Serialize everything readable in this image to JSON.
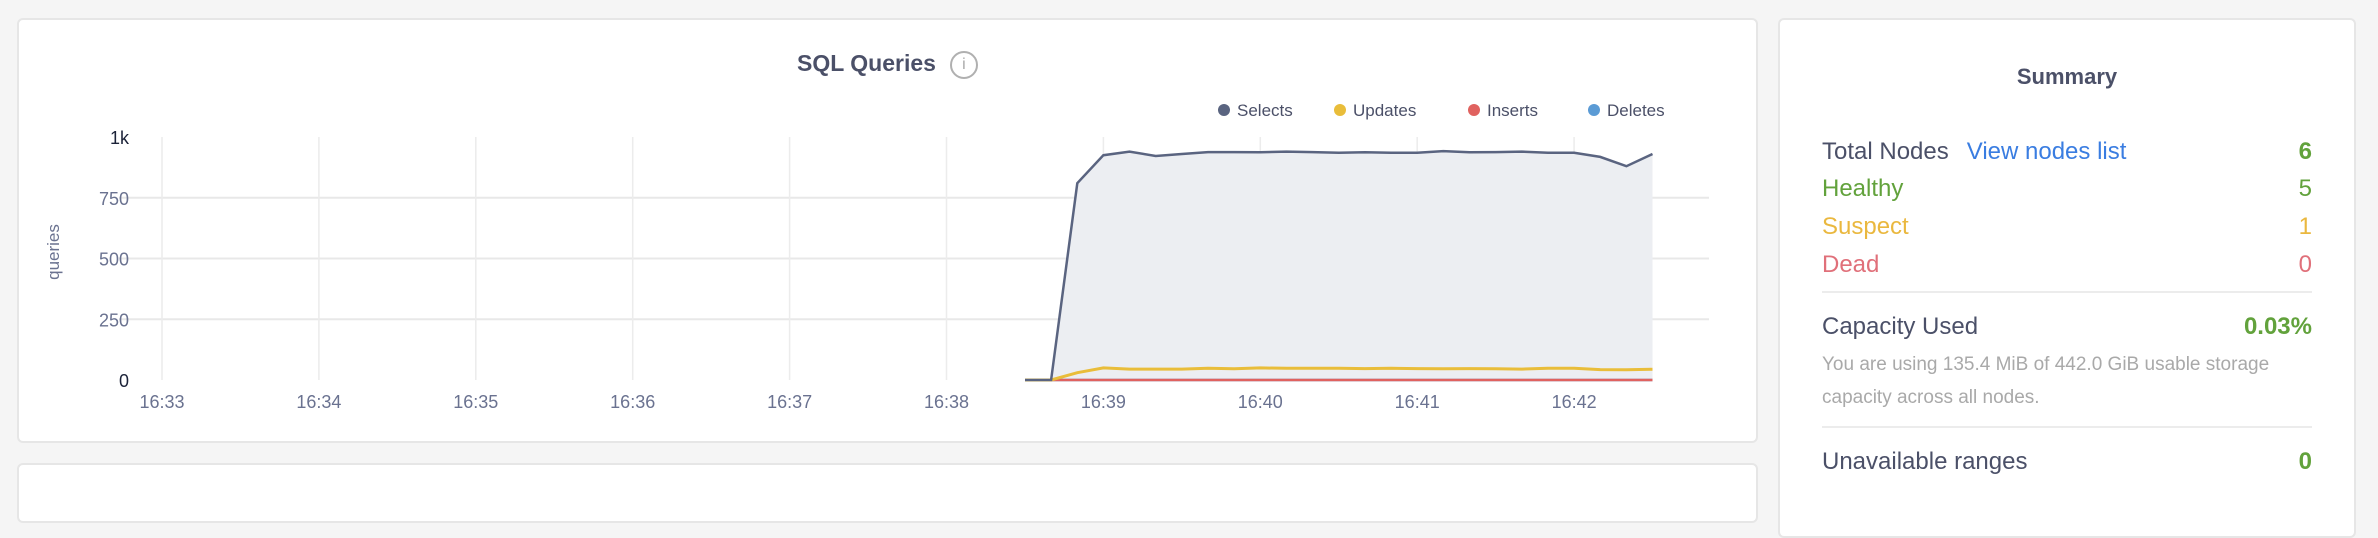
{
  "chart_data": {
    "type": "area",
    "title": "SQL Queries",
    "info_icon": "info-circle-icon",
    "ylabel": "queries",
    "xlabel": "",
    "ylim": [
      0,
      1000
    ],
    "yticks": [
      "0",
      "250",
      "500",
      "750",
      "1k"
    ],
    "ytick_values": [
      0,
      250,
      500,
      750,
      1000
    ],
    "xticks": [
      "16:33",
      "16:34",
      "16:35",
      "16:36",
      "16:37",
      "16:38",
      "16:39",
      "16:40",
      "16:41",
      "16:42"
    ],
    "xlim": [
      "16:33:00",
      "16:42:30"
    ],
    "grid": true,
    "legend_position": "top-right",
    "x": [
      "16:38:30",
      "16:38:40",
      "16:38:50",
      "16:39:00",
      "16:39:10",
      "16:39:20",
      "16:39:30",
      "16:39:40",
      "16:39:50",
      "16:40:00",
      "16:40:10",
      "16:40:20",
      "16:40:30",
      "16:40:40",
      "16:40:50",
      "16:41:00",
      "16:41:10",
      "16:41:20",
      "16:41:30",
      "16:41:40",
      "16:41:50",
      "16:42:00",
      "16:42:10",
      "16:42:20",
      "16:42:30"
    ],
    "series": [
      {
        "name": "Selects",
        "color": "#5a6480",
        "fill": "#eceef2",
        "values": [
          0,
          0,
          810,
          925,
          940,
          922,
          930,
          938,
          938,
          937,
          940,
          938,
          935,
          937,
          935,
          935,
          942,
          937,
          938,
          940,
          935,
          935,
          918,
          880,
          930
        ]
      },
      {
        "name": "Updates",
        "color": "#e9bd3a",
        "fill": "#f3ede0",
        "values": [
          0,
          0,
          30,
          50,
          45,
          45,
          45,
          48,
          46,
          50,
          48,
          48,
          48,
          47,
          48,
          47,
          46,
          47,
          46,
          45,
          48,
          48,
          43,
          42,
          44
        ]
      },
      {
        "name": "Inserts",
        "color": "#e0625f",
        "fill": "none",
        "values": [
          0,
          0,
          0,
          0,
          0,
          0,
          0,
          0,
          0,
          0,
          0,
          0,
          0,
          0,
          0,
          0,
          0,
          0,
          0,
          0,
          0,
          0,
          0,
          0,
          0
        ]
      },
      {
        "name": "Deletes",
        "color": "#5b9bd5",
        "fill": "none",
        "values": [
          0,
          0,
          0,
          0,
          0,
          0,
          0,
          0,
          0,
          0,
          0,
          0,
          0,
          0,
          0,
          0,
          0,
          0,
          0,
          0,
          0,
          0,
          0,
          0,
          0
        ]
      }
    ]
  },
  "summary": {
    "title": "Summary",
    "total_nodes_label": "Total Nodes",
    "view_nodes_link": "View nodes list",
    "total_nodes_value": "6",
    "healthy_label": "Healthy",
    "healthy_value": "5",
    "suspect_label": "Suspect",
    "suspect_value": "1",
    "dead_label": "Dead",
    "dead_value": "0",
    "capacity_label": "Capacity Used",
    "capacity_value": "0.03%",
    "capacity_description": "You are using 135.4 MiB of 442.0 GiB usable storage capacity across all nodes.",
    "unavailable_label": "Unavailable ranges",
    "unavailable_value": "0",
    "colors": {
      "text": "#4b5068",
      "healthy": "#62a23c",
      "suspect": "#eab83f",
      "dead": "#e0707a",
      "link": "#3a7de1"
    }
  }
}
